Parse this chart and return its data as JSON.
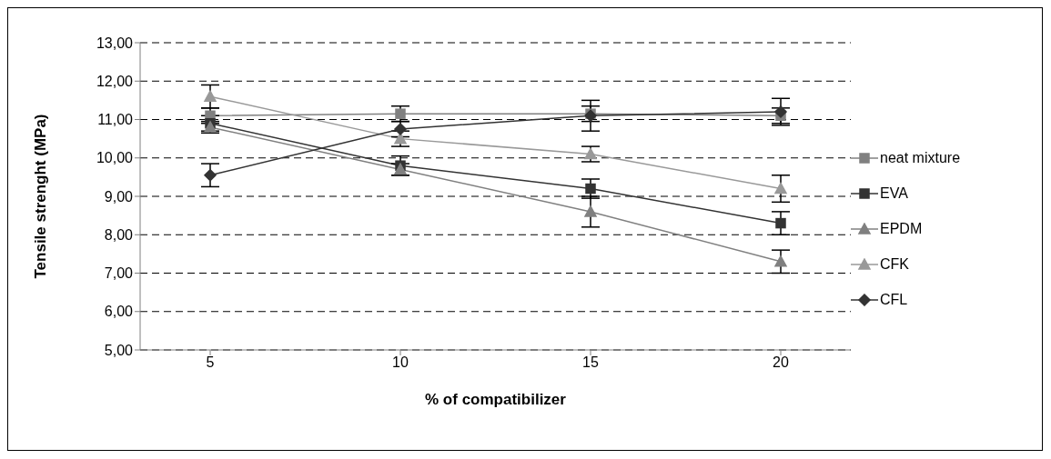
{
  "chart_data": {
    "type": "line",
    "xlabel": "% of compatibilizer",
    "ylabel": "Tensile strenght (MPa)",
    "categories": [
      "5",
      "10",
      "15",
      "20"
    ],
    "ylim": [
      5,
      13
    ],
    "yticks": [
      {
        "value": 5,
        "label": "5,00"
      },
      {
        "value": 6,
        "label": "6,00"
      },
      {
        "value": 7,
        "label": "7,00"
      },
      {
        "value": 8,
        "label": "8,00"
      },
      {
        "value": 9,
        "label": "9,00"
      },
      {
        "value": 10,
        "label": "10,00"
      },
      {
        "value": 11,
        "label": "11,00"
      },
      {
        "value": 12,
        "label": "12,00"
      },
      {
        "value": 13,
        "label": "13,00"
      }
    ],
    "grid": "y",
    "legend": "right",
    "series": [
      {
        "name": "neat mixture",
        "color": "#808080",
        "marker": "square",
        "values": [
          11.1,
          11.15,
          11.15,
          11.1
        ],
        "errors": [
          0.2,
          0.2,
          0.2,
          0.2
        ]
      },
      {
        "name": "EVA",
        "color": "#333333",
        "marker": "square",
        "values": [
          10.9,
          9.8,
          9.2,
          8.3
        ],
        "errors": [
          0.2,
          0.25,
          0.25,
          0.3
        ]
      },
      {
        "name": "EPDM",
        "color": "#808080",
        "marker": "triangle",
        "values": [
          10.8,
          9.7,
          8.6,
          7.3
        ],
        "errors": [
          0.15,
          0.15,
          0.4,
          0.3
        ]
      },
      {
        "name": "CFK",
        "color": "#999999",
        "marker": "triangle",
        "values": [
          11.6,
          10.5,
          10.1,
          9.2
        ],
        "errors": [
          0.3,
          0.2,
          0.2,
          0.35
        ]
      },
      {
        "name": "CFL",
        "color": "#333333",
        "marker": "diamond",
        "values": [
          9.55,
          10.75,
          11.1,
          11.2
        ],
        "errors": [
          0.3,
          0.2,
          0.4,
          0.35
        ]
      }
    ]
  }
}
